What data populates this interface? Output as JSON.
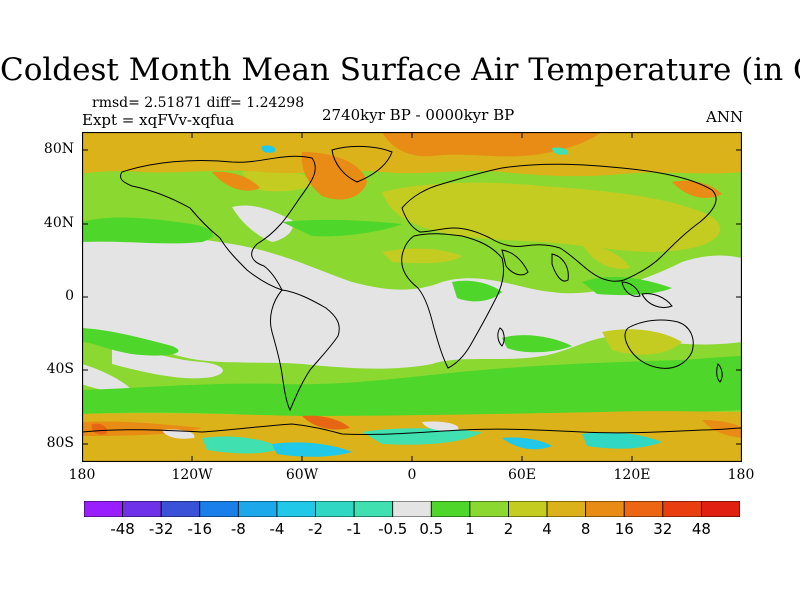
{
  "title": "Coldest Month Mean Surface Air Temperature (in C)",
  "stats": "rmsd= 2.51871 diff= 1.24298",
  "experiment": "Expt = xqFVv-xqfua",
  "period": "2740kyr BP - 0000kyr BP",
  "season": "ANN",
  "map": {
    "projection": "cylindrical equidistant",
    "lon_range": [
      -180,
      180
    ],
    "lat_range": [
      -90,
      90
    ],
    "lat_ticks": [
      "80N",
      "40N",
      "0",
      "40S",
      "80S"
    ],
    "lat_tick_values": [
      80,
      40,
      0,
      -40,
      -80
    ],
    "lon_ticks": [
      "180",
      "120W",
      "60W",
      "0",
      "60E",
      "120E",
      "180"
    ],
    "lon_tick_values": [
      -180,
      -120,
      -60,
      0,
      60,
      120,
      180
    ],
    "coastlines": true,
    "dominant_values": {
      "arctic_land": "8 to 16",
      "mid_latitude_land": "2 to 4",
      "tropical_ocean": "-0.5 to 0.5",
      "southern_ocean": "1 to 2",
      "antarctic_margin": "-4 to 16"
    }
  },
  "colorbar": {
    "labels": [
      "-48",
      "-32",
      "-16",
      "-8",
      "-4",
      "-2",
      "-1",
      "-0.5",
      "0.5",
      "1",
      "2",
      "4",
      "8",
      "16",
      "32",
      "48"
    ],
    "colors": [
      "#9a1fff",
      "#6f32e8",
      "#3a52d8",
      "#1a7fe8",
      "#1ea8ec",
      "#22c8e8",
      "#30d8c4",
      "#40e0b0",
      "#e4e4e4",
      "#4ed62a",
      "#8ad830",
      "#c4cc22",
      "#dcb21a",
      "#e88c16",
      "#ec6614",
      "#e83e10",
      "#e02010"
    ]
  }
}
